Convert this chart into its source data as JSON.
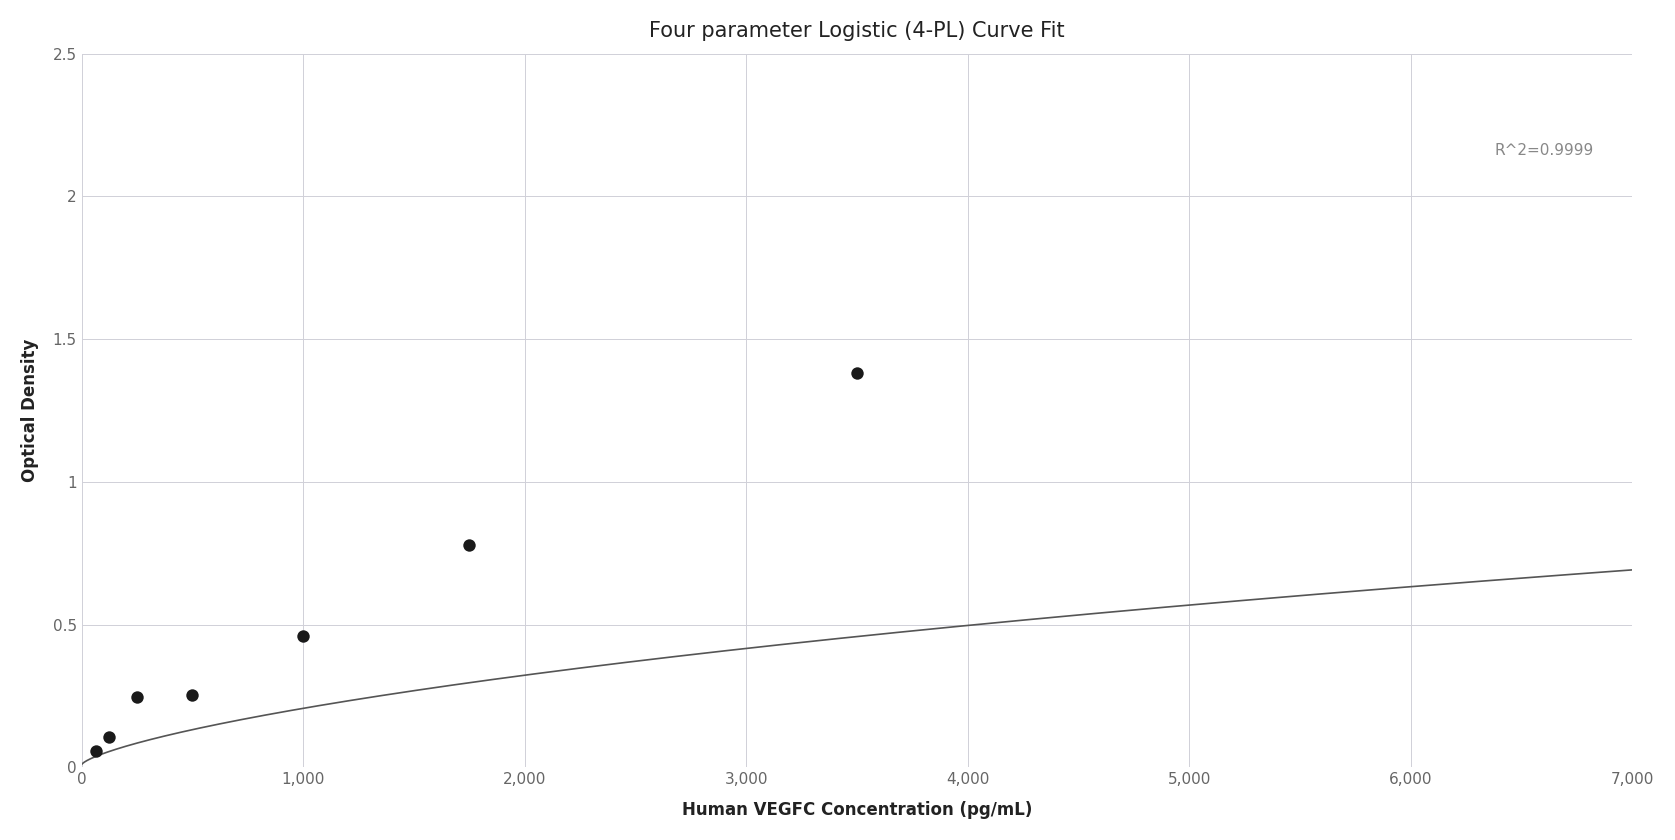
{
  "title": "Four parameter Logistic (4-PL) Curve Fit",
  "xlabel": "Human VEGFC Concentration (pg/mL)",
  "ylabel": "Optical Density",
  "r_squared_text": "R^2=0.9999",
  "data_points_x": [
    62.5,
    125,
    250,
    500,
    1000,
    1750,
    3500
  ],
  "data_points_y": [
    0.058,
    0.105,
    0.245,
    0.255,
    0.46,
    0.78,
    1.38
  ],
  "xlim": [
    0,
    7000
  ],
  "ylim": [
    0,
    2.5
  ],
  "xticks": [
    0,
    1000,
    2000,
    3000,
    4000,
    5000,
    6000,
    7000
  ],
  "yticks": [
    0,
    0.5,
    1.0,
    1.5,
    2.0,
    2.5
  ],
  "background_color": "#ffffff",
  "grid_color": "#d0d0d8",
  "line_color": "#555555",
  "dot_color": "#1a1a1a",
  "title_fontsize": 15,
  "label_fontsize": 12,
  "tick_fontsize": 11,
  "annotation_fontsize": 11,
  "annotation_color": "#888888",
  "dot_size": 80,
  "line_width": 1.2,
  "4pl_A": 0.01,
  "4pl_B": 0.72,
  "4pl_C": 50000,
  "4pl_D": 3.5
}
